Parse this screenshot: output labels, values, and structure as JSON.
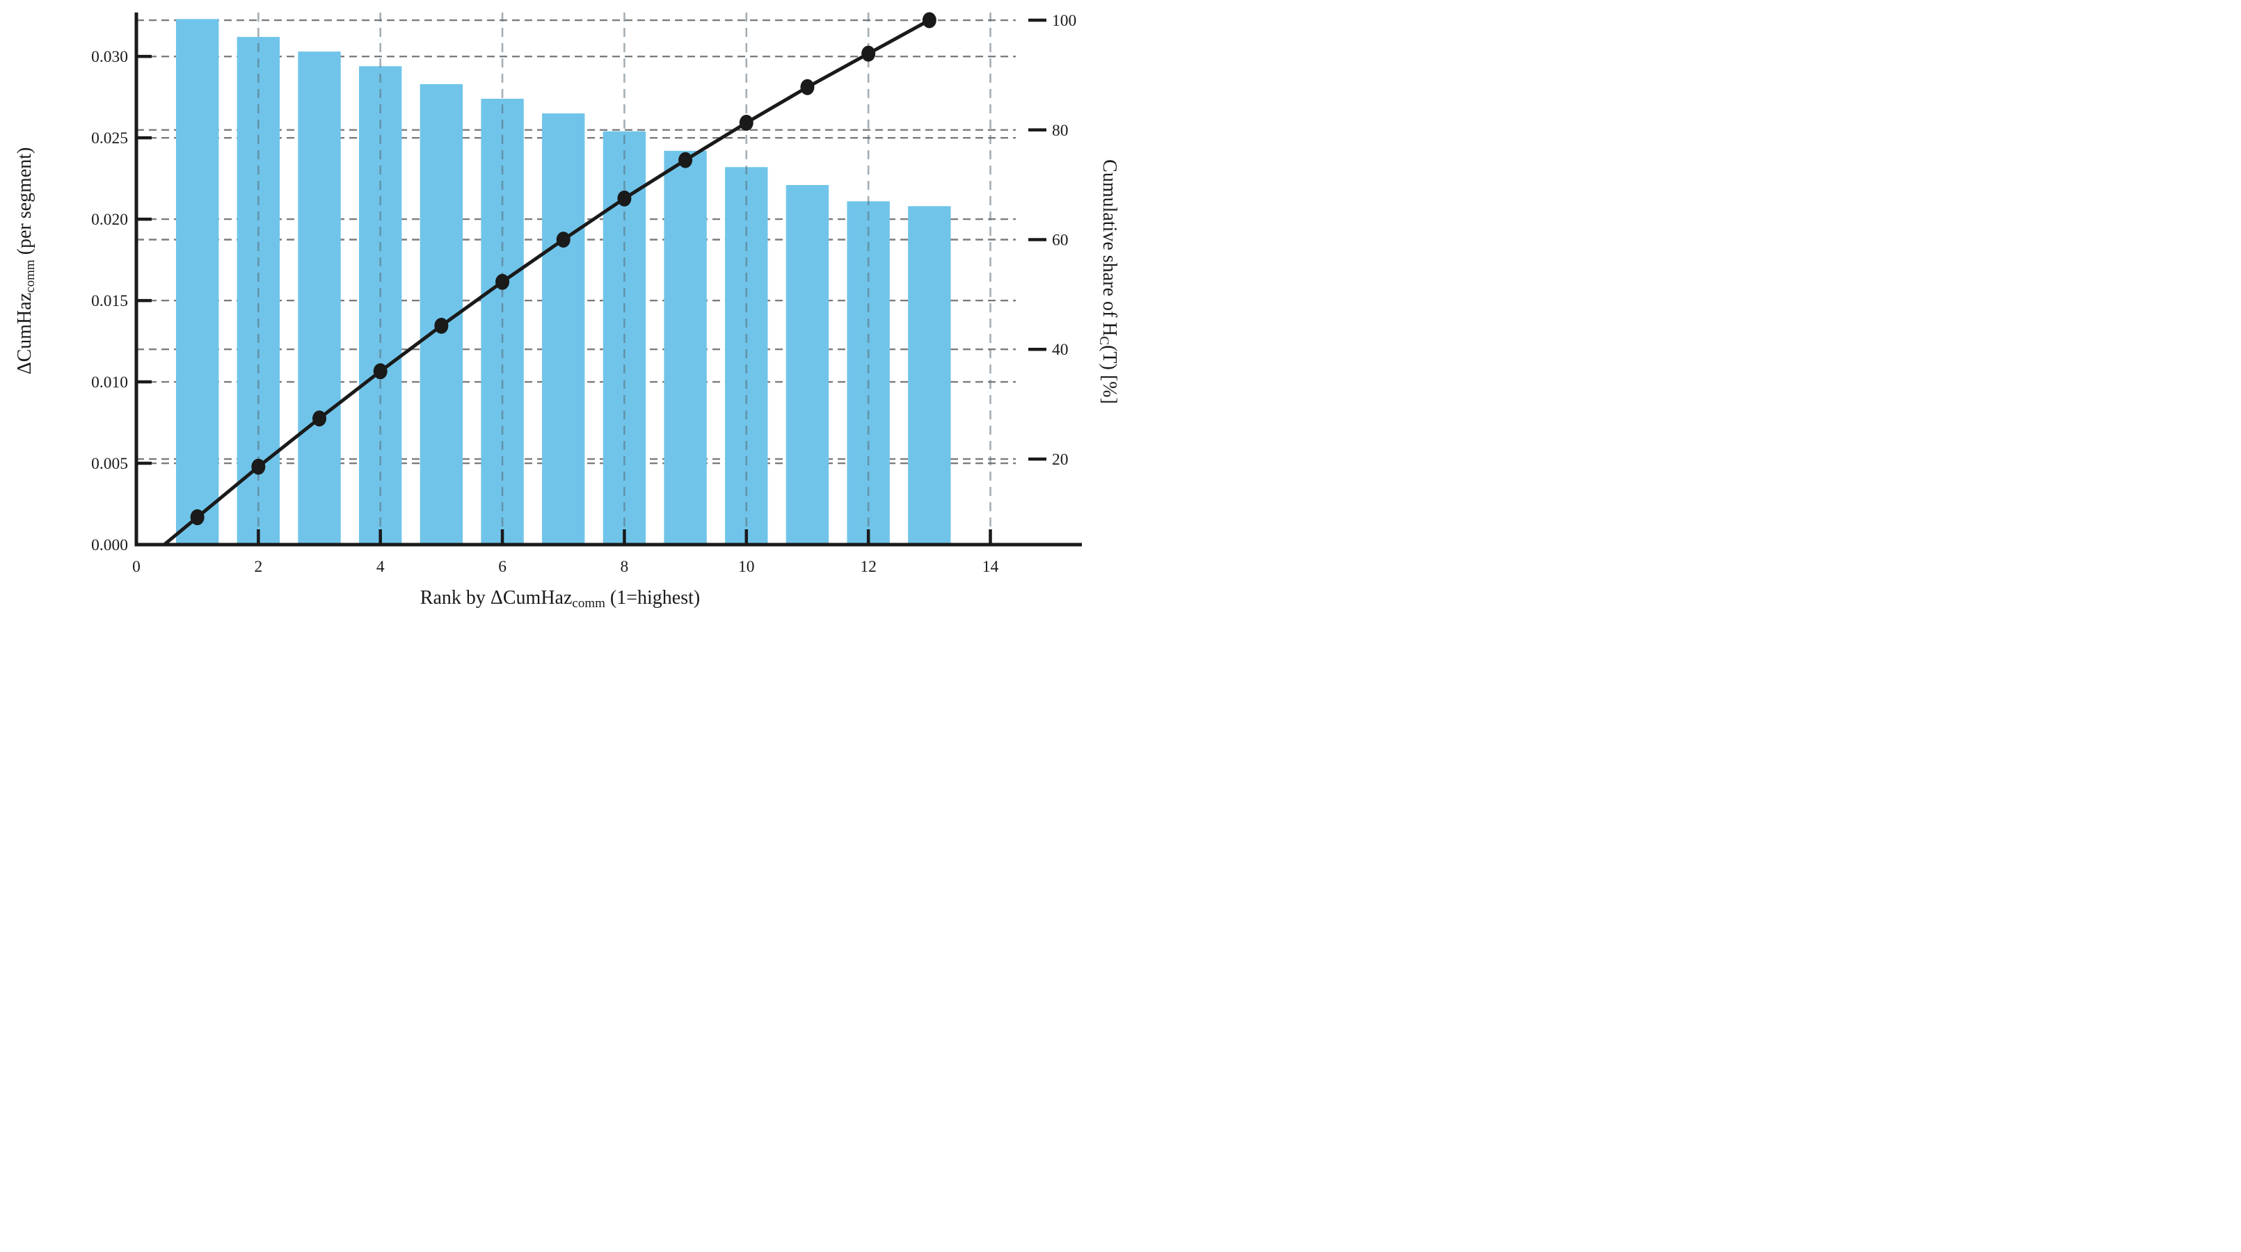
{
  "figure": {
    "background": "#ffffff",
    "description": "Pareto chart: per-segment hazard increments (bars, left axis) with cumulative share line (dots, right axis)"
  },
  "chart_data": {
    "type": "bar",
    "subtype": "pareto-bar-line-combo",
    "categories": [
      1,
      2,
      3,
      4,
      5,
      6,
      7,
      8,
      9,
      10,
      11,
      12,
      13
    ],
    "series": [
      {
        "name": "delta-cumhaz-per-segment-bars",
        "type": "bar",
        "axis": "left",
        "values": [
          0.0323,
          0.0312,
          0.0303,
          0.0294,
          0.0283,
          0.0274,
          0.0265,
          0.0254,
          0.0242,
          0.0232,
          0.0221,
          0.0211,
          0.0208
        ]
      },
      {
        "name": "cumulative-share-line",
        "type": "line",
        "axis": "right",
        "values": [
          9.4,
          18.6,
          27.4,
          36.0,
          44.3,
          52.3,
          60.0,
          67.5,
          74.5,
          81.3,
          87.8,
          93.9,
          100.0
        ],
        "line_starts_at_axis_crossing": true
      }
    ],
    "title": "",
    "xlabel": {
      "pre": "Rank by ",
      "main": "ΔCumHaz",
      "sub": "comm",
      "post": " (1=highest)"
    },
    "ylabel_left": {
      "pre": "",
      "main": "ΔCumHaz",
      "sub": "comm",
      "post": " (per segment)"
    },
    "ylabel_right": {
      "pre": "Cumulative share of H",
      "main": "",
      "sub": "C",
      "post": "(T) [%]"
    },
    "x_ticks": [
      0,
      2,
      4,
      6,
      8,
      10,
      12,
      14
    ],
    "y_left_ticks": [
      "0.000",
      "0.005",
      "0.010",
      "0.015",
      "0.020",
      "0.025",
      "0.030"
    ],
    "y_left_tick_values": [
      0.0,
      0.005,
      0.01,
      0.015,
      0.02,
      0.025,
      0.03
    ],
    "y_right_ticks": [
      20,
      40,
      60,
      80,
      100
    ],
    "x_range": [
      0,
      15.5
    ],
    "y_left_range": [
      0,
      0.0327
    ],
    "y_right_range": [
      4.4,
      101.4
    ],
    "bar_width_units": 0.7,
    "grid": {
      "horizontal": "dashed, at both left and right axis ticks",
      "vertical": "dashed, at even ranks 2-14"
    },
    "legend": "none",
    "colors": {
      "bar": "#70c4e9",
      "line": "#1a1a1a",
      "marker": "#1a1a1a",
      "axis": "#1a1a1a",
      "grid_horizontal": "#666666",
      "grid_vertical": "#5a6c78"
    }
  }
}
